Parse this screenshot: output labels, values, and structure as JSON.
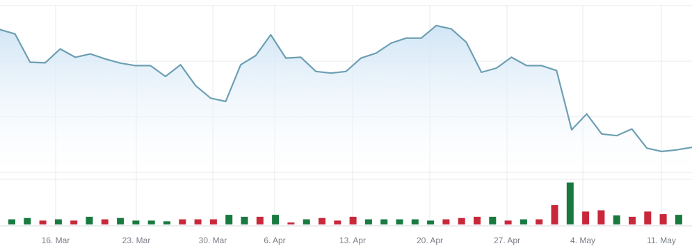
{
  "chart_data": {
    "type": "line",
    "x_tick_labels": [
      "16. Mar",
      "23. Mar",
      "30. Mar",
      "6. Apr",
      "13. Apr",
      "20. Apr",
      "27. Apr",
      "4. May",
      "11. May"
    ],
    "price_series": {
      "values": [
        91.2,
        86.0,
        52.0,
        51.3,
        68.0,
        58.0,
        62.0,
        56.0,
        51.0,
        48.0,
        48.0,
        35.0,
        49.0,
        24.0,
        9.0,
        5.0,
        49.0,
        60.0,
        85.0,
        57.0,
        58.0,
        41.0,
        39.0,
        41.0,
        57.0,
        63.0,
        75.0,
        81.0,
        81.0,
        96.0,
        92.0,
        76.0,
        40.0,
        45.0,
        58.0,
        48.0,
        48.0,
        42.0,
        -29.0,
        -10.0,
        -34.0,
        -36.0,
        -28.0,
        -51.0,
        -55.0,
        -53.0,
        -50.0
      ],
      "y_range": [
        -80,
        120
      ]
    },
    "volume_series": {
      "values": [
        8.0,
        10.0,
        6.0,
        8.0,
        6.0,
        12.0,
        8.0,
        10.0,
        6.0,
        6.0,
        5.0,
        8.0,
        8.0,
        8.0,
        15.0,
        12.0,
        12.0,
        15.0,
        3.0,
        8.0,
        10.0,
        6.0,
        12.0,
        8.0,
        8.0,
        8.0,
        8.0,
        6.0,
        8.0,
        10.0,
        12.0,
        12.0,
        6.0,
        8.0,
        8.0,
        30.0,
        65.0,
        20.0,
        22.0,
        14.0,
        12.0,
        20.0,
        16.0,
        15.0,
        14.0
      ],
      "directions": [
        "up",
        "up",
        "down",
        "up",
        "down",
        "up",
        "down",
        "up",
        "up",
        "up",
        "up",
        "down",
        "down",
        "down",
        "up",
        "up",
        "down",
        "up",
        "down",
        "up",
        "down",
        "down",
        "down",
        "up",
        "up",
        "up",
        "up",
        "up",
        "down",
        "down",
        "down",
        "up",
        "down",
        "up",
        "down",
        "down",
        "up",
        "down",
        "down",
        "up",
        "down",
        "down",
        "down",
        "up",
        "down"
      ],
      "y_range": [
        0,
        70
      ]
    },
    "colors": {
      "line": "#6c9fb3",
      "area_top": "#cfe4f5",
      "area_bottom": "#ffffff",
      "up": "#187a3f",
      "down": "#c8283a",
      "grid": "#e6e8eb",
      "axis": "#d5d8dc",
      "label": "#7a7f87"
    },
    "grid": true
  }
}
